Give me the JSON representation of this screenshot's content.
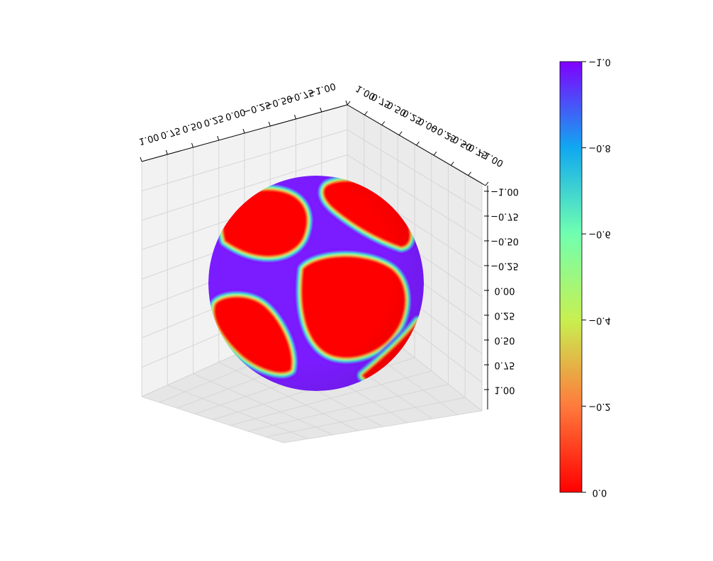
{
  "chart_data": {
    "type": "surface",
    "plot_kind": "3d sphere surface with colormap",
    "mirrored_render": true,
    "colormap": "rainbow",
    "title": "",
    "axes": {
      "x": {
        "range": [
          -1.0,
          1.0
        ],
        "ticks": [
          "1.00",
          "0.75",
          "0.50",
          "0.25",
          "0.00",
          "−0.25",
          "−0.50",
          "−0.75",
          "−1.00"
        ]
      },
      "y": {
        "range": [
          -1.0,
          1.0
        ],
        "ticks": [
          "1.00",
          "0.75",
          "0.50",
          "0.25",
          "0.00",
          "−0.25",
          "−0.50",
          "−0.75",
          "−1.00"
        ]
      },
      "z": {
        "range": [
          -1.0,
          1.0
        ],
        "ticks": [
          "−1.00",
          "−0.75",
          "−0.50",
          "−0.25",
          "0.00",
          "0.25",
          "0.50",
          "0.75",
          "1.00"
        ]
      }
    },
    "grid": true,
    "surface": {
      "shape": "unit sphere",
      "value_range": [
        -1.0,
        0.0
      ],
      "background_value": -1.0,
      "patch_value": 0.0,
      "patches": [
        {
          "location": "upper-left"
        },
        {
          "location": "upper-right"
        },
        {
          "location": "center-right"
        },
        {
          "location": "lower-left"
        },
        {
          "location": "lower-right edge"
        }
      ]
    },
    "colorbar": {
      "range": [
        -1.0,
        0.0
      ],
      "ticks": [
        "−1.0",
        "−0.8",
        "−0.6",
        "−0.4",
        "−0.2",
        "0.0"
      ],
      "colors": [
        "#ff0000",
        "#ff7a3c",
        "#c8f050",
        "#70ffb0",
        "#10a8f0",
        "#8000ff"
      ]
    }
  }
}
